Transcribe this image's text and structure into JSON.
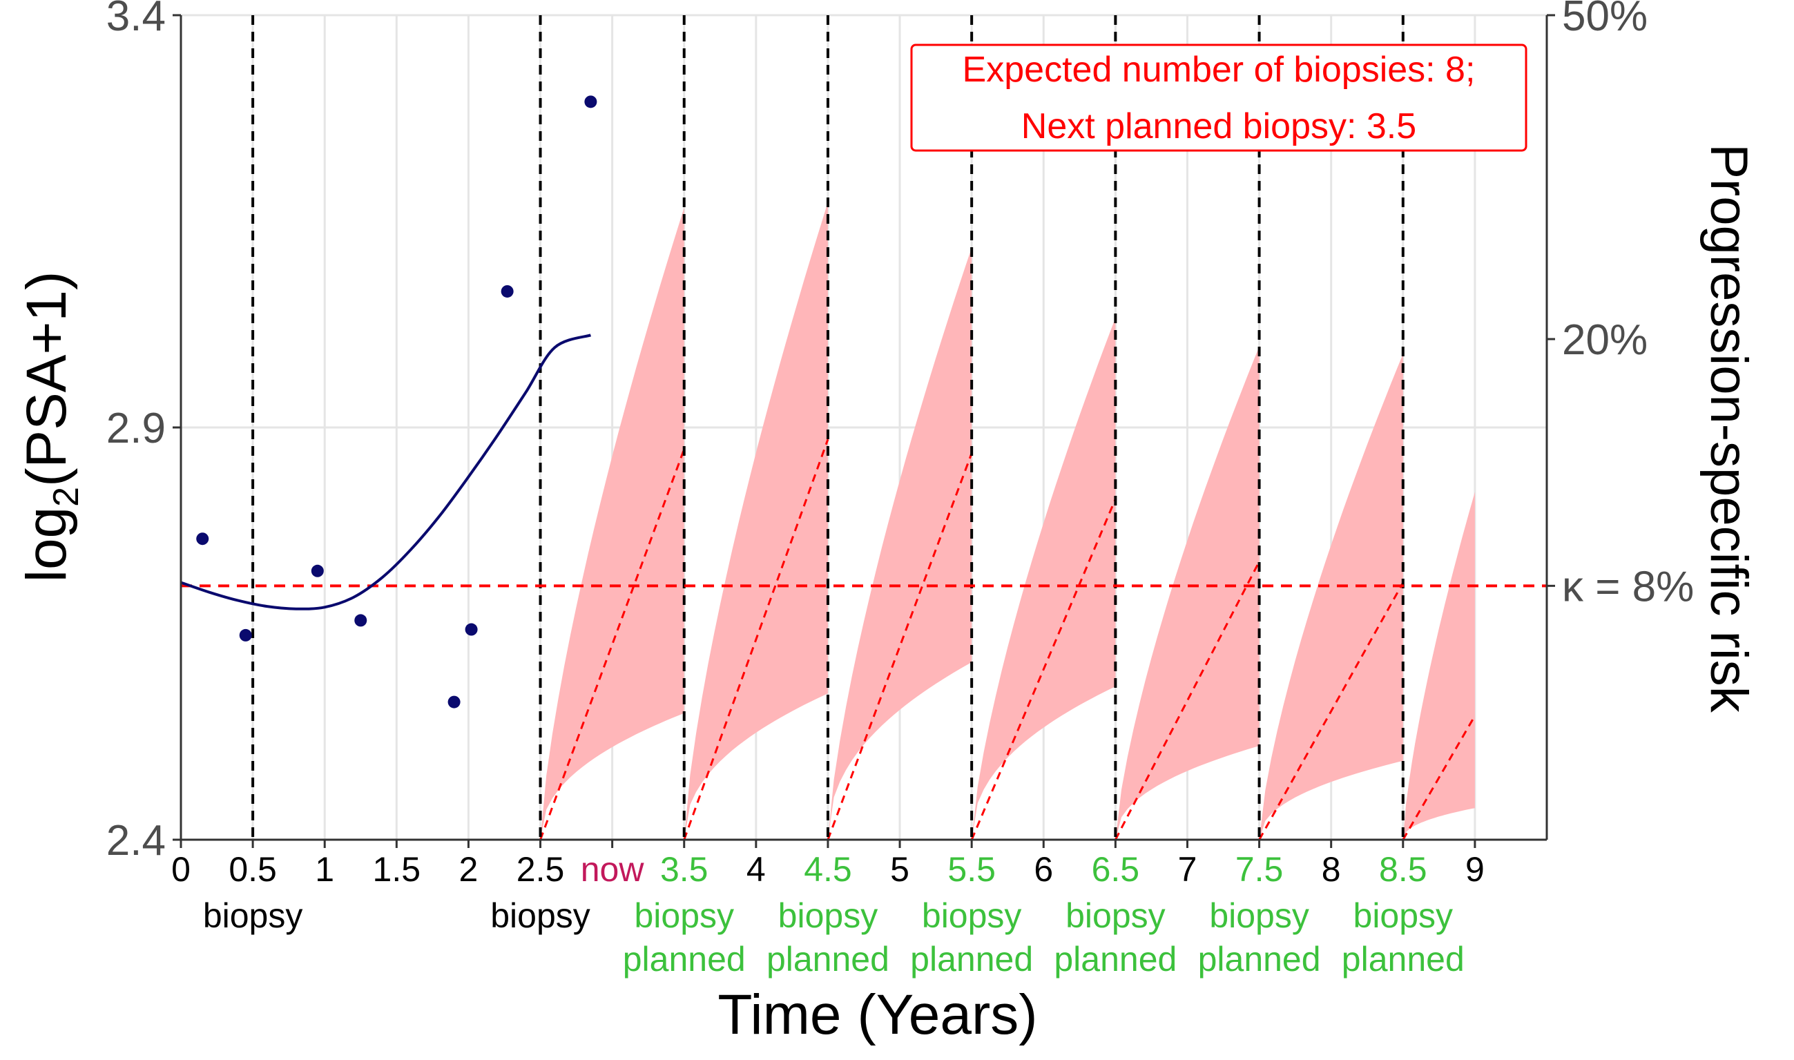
{
  "chart_data": {
    "type": "line",
    "xlabel": "Time (Years)",
    "ylabel": "log2(PSA+1)",
    "ylabel_parts": {
      "base": "log",
      "sub": "2",
      "rest": "(PSA+1)"
    },
    "y2label": "Progression-specific risk",
    "xlim": [
      0,
      9.5
    ],
    "ylim": [
      2.4,
      3.4
    ],
    "x_ticks": [
      {
        "value": 0,
        "label": "0",
        "color": "#000000"
      },
      {
        "value": 0.5,
        "label": "0.5",
        "color": "#000000"
      },
      {
        "value": 1,
        "label": "1",
        "color": "#000000"
      },
      {
        "value": 1.5,
        "label": "1.5",
        "color": "#000000"
      },
      {
        "value": 2,
        "label": "2",
        "color": "#000000"
      },
      {
        "value": 2.5,
        "label": "2.5",
        "color": "#000000"
      },
      {
        "value": 3,
        "label": "now",
        "color": "#C2185B"
      },
      {
        "value": 3.5,
        "label": "3.5",
        "color": "#3CC13C"
      },
      {
        "value": 4,
        "label": "4",
        "color": "#000000"
      },
      {
        "value": 4.5,
        "label": "4.5",
        "color": "#3CC13C"
      },
      {
        "value": 5,
        "label": "5",
        "color": "#000000"
      },
      {
        "value": 5.5,
        "label": "5.5",
        "color": "#3CC13C"
      },
      {
        "value": 6,
        "label": "6",
        "color": "#000000"
      },
      {
        "value": 6.5,
        "label": "6.5",
        "color": "#3CC13C"
      },
      {
        "value": 7,
        "label": "7",
        "color": "#000000"
      },
      {
        "value": 7.5,
        "label": "7.5",
        "color": "#3CC13C"
      },
      {
        "value": 8,
        "label": "8",
        "color": "#000000"
      },
      {
        "value": 8.5,
        "label": "8.5",
        "color": "#3CC13C"
      },
      {
        "value": 9,
        "label": "9",
        "color": "#000000"
      }
    ],
    "biopsy_labels": [
      {
        "x": 0.5,
        "lines": [
          "biopsy"
        ],
        "color": "#000000"
      },
      {
        "x": 2.5,
        "lines": [
          "biopsy"
        ],
        "color": "#000000"
      },
      {
        "x": 3.5,
        "lines": [
          "biopsy",
          "planned"
        ],
        "color": "#3CC13C"
      },
      {
        "x": 4.5,
        "lines": [
          "biopsy",
          "planned"
        ],
        "color": "#3CC13C"
      },
      {
        "x": 5.5,
        "lines": [
          "biopsy",
          "planned"
        ],
        "color": "#3CC13C"
      },
      {
        "x": 6.5,
        "lines": [
          "biopsy",
          "planned"
        ],
        "color": "#3CC13C"
      },
      {
        "x": 7.5,
        "lines": [
          "biopsy",
          "planned"
        ],
        "color": "#3CC13C"
      },
      {
        "x": 8.5,
        "lines": [
          "biopsy",
          "planned"
        ],
        "color": "#3CC13C"
      }
    ],
    "y_ticks": [
      {
        "value": 2.4,
        "label": "2.4"
      },
      {
        "value": 2.9,
        "label": "2.9"
      },
      {
        "value": 3.4,
        "label": "3.4"
      }
    ],
    "y2_ticks": [
      {
        "value": 0.5,
        "label": "50%"
      },
      {
        "value": 0.2,
        "label": "20%"
      },
      {
        "value": 0.08,
        "label": "κ = 8%"
      }
    ],
    "y2_scale": "logit",
    "y2_lim": [
      0.0285,
      0.5
    ],
    "grid": true,
    "biopsy_times": [
      0.5,
      2.5,
      3.5,
      4.5,
      5.5,
      6.5,
      7.5,
      8.5
    ],
    "threshold": {
      "value": 0.08,
      "color": "#FF0000"
    },
    "observed_psa": [
      {
        "x": 0.15,
        "y": 2.765
      },
      {
        "x": 0.45,
        "y": 2.648
      },
      {
        "x": 0.95,
        "y": 2.726
      },
      {
        "x": 1.25,
        "y": 2.666
      },
      {
        "x": 1.9,
        "y": 2.567
      },
      {
        "x": 2.02,
        "y": 2.655
      },
      {
        "x": 2.27,
        "y": 3.065
      },
      {
        "x": 2.85,
        "y": 3.295
      }
    ],
    "fitted_psa": {
      "x": [
        0,
        0.2,
        0.4,
        0.6,
        0.8,
        1.0,
        1.2,
        1.4,
        1.6,
        1.8,
        2.0,
        2.2,
        2.4,
        2.6,
        2.85
      ],
      "y": [
        2.712,
        2.7,
        2.69,
        2.683,
        2.68,
        2.682,
        2.694,
        2.718,
        2.752,
        2.793,
        2.84,
        2.89,
        2.943,
        2.997,
        3.012
      ]
    },
    "risk_intervals": [
      {
        "x0": 2.5,
        "x1": 3.5,
        "mean_end": 0.135,
        "upper_end": 0.305,
        "lower_end": 0.048
      },
      {
        "x0": 3.5,
        "x1": 4.5,
        "mean_end": 0.14,
        "upper_end": 0.31,
        "lower_end": 0.052
      },
      {
        "x0": 4.5,
        "x1": 5.5,
        "mean_end": 0.133,
        "upper_end": 0.27,
        "lower_end": 0.059
      },
      {
        "x0": 5.5,
        "x1": 6.5,
        "mean_end": 0.112,
        "upper_end": 0.215,
        "lower_end": 0.0535
      },
      {
        "x0": 6.5,
        "x1": 7.5,
        "mean_end": 0.088,
        "upper_end": 0.195,
        "lower_end": 0.042
      },
      {
        "x0": 7.5,
        "x1": 8.5,
        "mean_end": 0.081,
        "upper_end": 0.19,
        "lower_end": 0.0395
      },
      {
        "x0": 8.5,
        "x1": 9.0,
        "mean_end": 0.0475,
        "upper_end": 0.115,
        "lower_end": 0.0325
      }
    ],
    "annotation": {
      "lines": [
        "Expected number of biopsies: 8;",
        "Next planned biopsy: 3.5"
      ],
      "color": "#FF0000",
      "placement": "top-right"
    },
    "colors": {
      "psa_points": "#0A0A6E",
      "psa_line": "#0A0A6E",
      "risk_band": "#FFB6B9",
      "risk_mean": "#FF0000",
      "biopsy_line": "#000000",
      "grid": "#E5E5E5"
    }
  }
}
